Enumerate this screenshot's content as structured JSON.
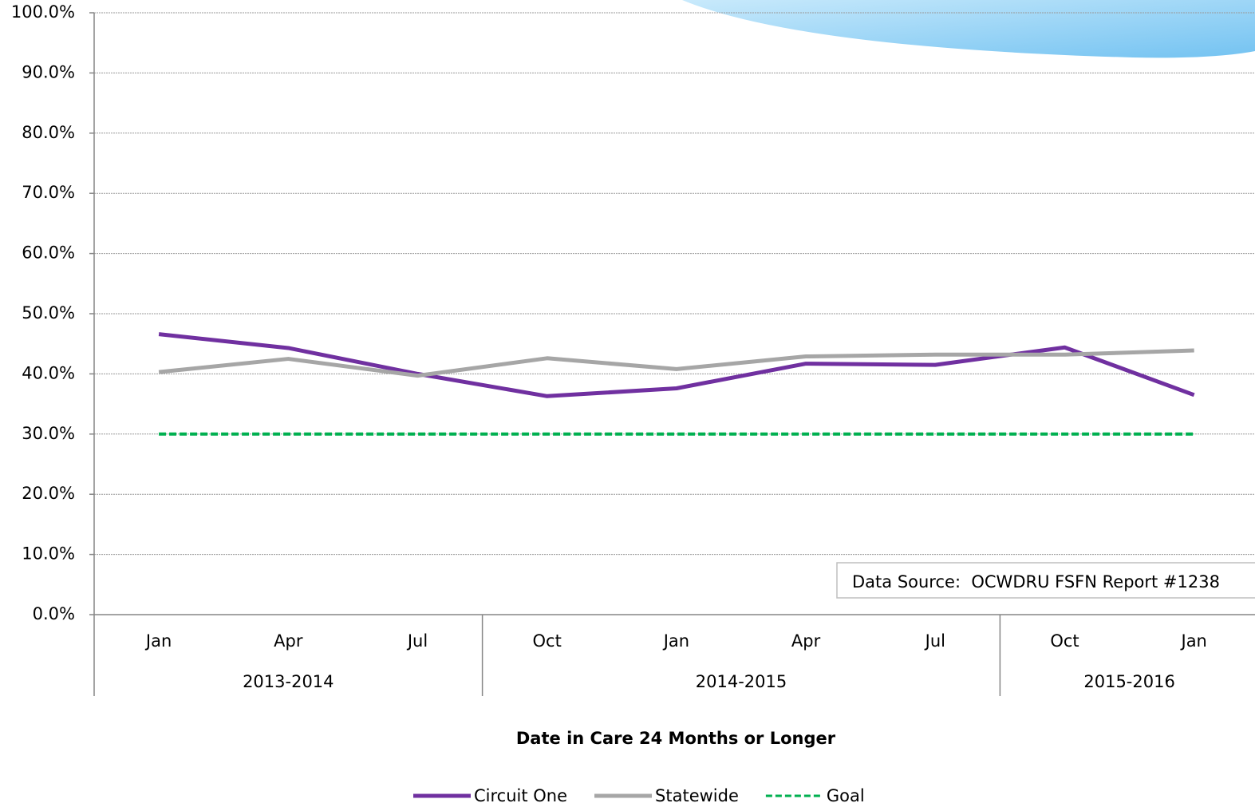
{
  "chart_data": {
    "type": "line",
    "x_title": "Date in Care 24 Months or Longer",
    "groups": [
      {
        "label": "2013-2014",
        "categories": [
          "Jan",
          "Apr",
          "Jul"
        ]
      },
      {
        "label": "2014-2015",
        "categories": [
          "Oct",
          "Jan",
          "Apr",
          "Jul"
        ]
      },
      {
        "label": "2015-2016",
        "categories": [
          "Oct",
          "Jan"
        ]
      }
    ],
    "series": [
      {
        "name": "Circuit One",
        "color": "#7030a0",
        "dashed": false,
        "values": [
          46.6,
          44.3,
          40.0,
          36.3,
          37.6,
          41.7,
          41.5,
          44.4,
          36.5
        ]
      },
      {
        "name": "Statewide",
        "color": "#a6a6a6",
        "dashed": false,
        "values": [
          40.3,
          42.5,
          39.7,
          42.6,
          40.8,
          42.9,
          43.2,
          43.2,
          43.9
        ]
      },
      {
        "name": "Goal",
        "color": "#00b050",
        "dashed": true,
        "values": [
          30.0,
          30.0,
          30.0,
          30.0,
          30.0,
          30.0,
          30.0,
          30.0,
          30.0
        ]
      }
    ],
    "ylim": [
      0,
      100
    ],
    "yticks": [
      {
        "value": 0,
        "label": "0.0%"
      },
      {
        "value": 10,
        "label": "10.0%"
      },
      {
        "value": 20,
        "label": "20.0%"
      },
      {
        "value": 30,
        "label": "30.0%"
      },
      {
        "value": 40,
        "label": "40.0%"
      },
      {
        "value": 50,
        "label": "50.0%"
      },
      {
        "value": 60,
        "label": "60.0%"
      },
      {
        "value": 70,
        "label": "70.0%"
      },
      {
        "value": 80,
        "label": "80.0%"
      },
      {
        "value": 90,
        "label": "90.0%"
      },
      {
        "value": 100,
        "label": "100.0%"
      }
    ],
    "grid": true,
    "annotation": "Data Source:  OCWDRU FSFN Report #1238",
    "legend": "bottom"
  }
}
